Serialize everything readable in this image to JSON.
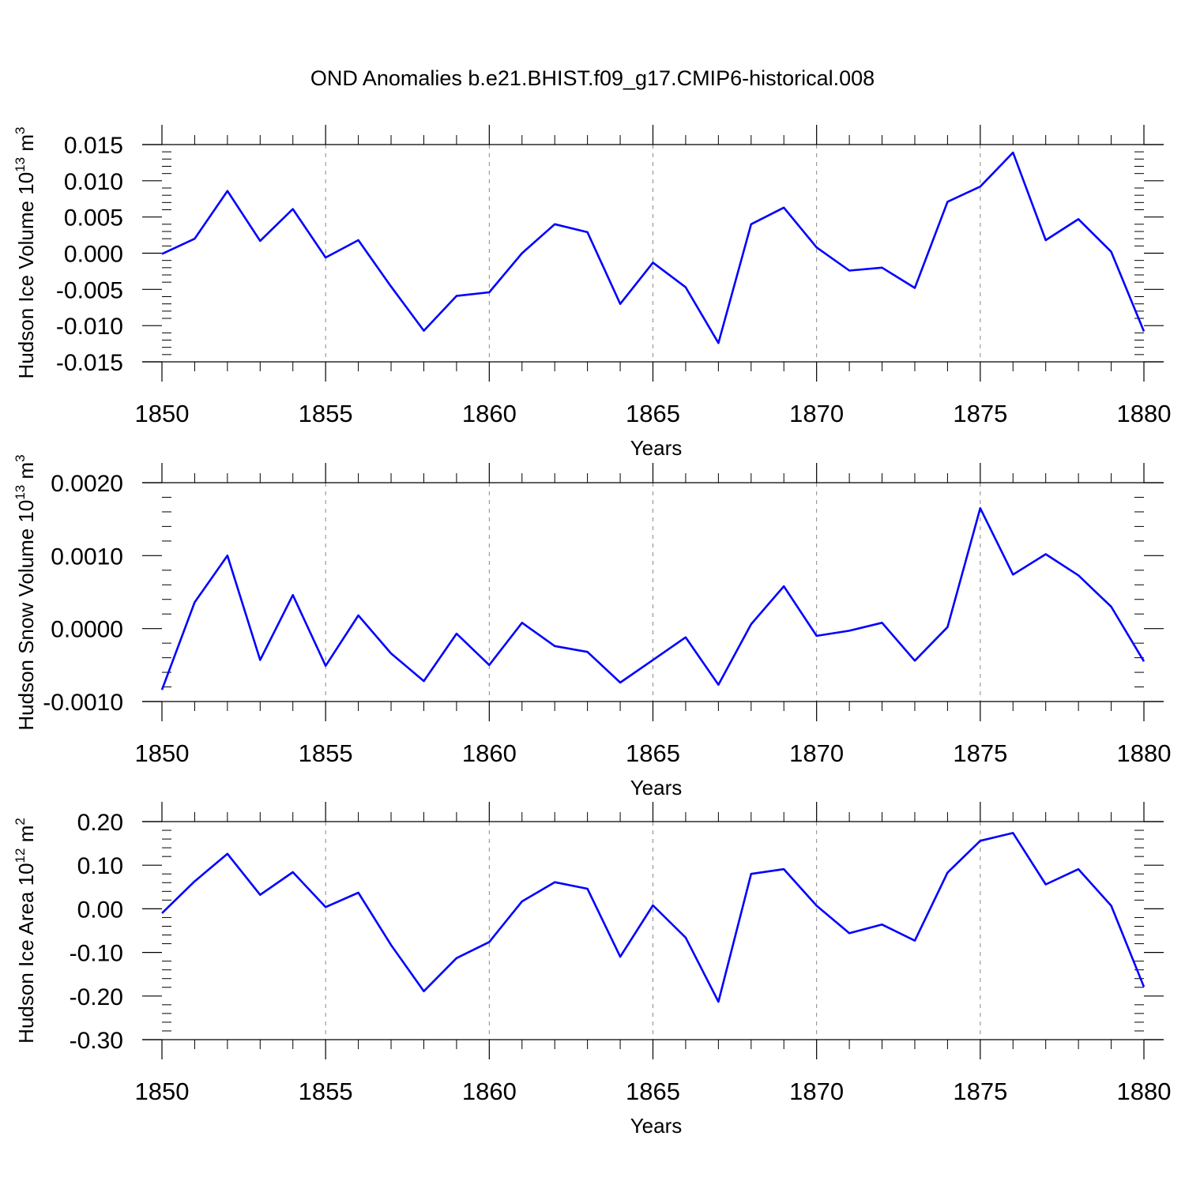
{
  "title": "OND Anomalies b.e21.BHIST.f09_g17.CMIP6-historical.008",
  "colors": {
    "line": "#0000ff",
    "axis": "#000000",
    "grid": "#888888"
  },
  "chart_data": [
    {
      "type": "line",
      "title": "",
      "xlabel": "Years",
      "ylabel": "Hudson Ice Volume 10",
      "ylabel_sup": "13",
      "ylabel_unit": "m",
      "ylabel_unit_sup": "3",
      "xlim": [
        1850,
        1880
      ],
      "ylim": [
        -0.015,
        0.015
      ],
      "xticks": [
        1850,
        1855,
        1860,
        1865,
        1870,
        1875,
        1880
      ],
      "yticks": [
        -0.015,
        -0.01,
        -0.005,
        0.0,
        0.005,
        0.01,
        0.015
      ],
      "yticklabels": [
        "-0.015",
        "-0.010",
        "-0.005",
        "0.000",
        "0.005",
        "0.010",
        "0.015"
      ],
      "grid": "vertical dashed at major x ticks",
      "x": [
        1850,
        1851,
        1852,
        1853,
        1854,
        1855,
        1856,
        1857,
        1858,
        1859,
        1860,
        1861,
        1862,
        1863,
        1864,
        1865,
        1866,
        1867,
        1868,
        1869,
        1870,
        1871,
        1872,
        1873,
        1874,
        1875,
        1876,
        1877,
        1878,
        1879,
        1880
      ],
      "series": [
        {
          "values": [
            -0.0001,
            0.002,
            0.0086,
            0.0017,
            0.0061,
            -0.0006,
            0.0018,
            -0.0046,
            -0.0107,
            -0.0059,
            -0.0054,
            0.0,
            0.004,
            0.0029,
            -0.007,
            -0.0013,
            -0.0047,
            -0.0124,
            0.004,
            0.0063,
            0.0008,
            -0.0024,
            -0.002,
            -0.0048,
            0.0071,
            0.0092,
            0.0139,
            0.0018,
            0.0047,
            0.0002,
            -0.0108
          ]
        }
      ]
    },
    {
      "type": "line",
      "title": "",
      "xlabel": "Years",
      "ylabel": "Hudson Snow Volume 10",
      "ylabel_sup": "13",
      "ylabel_unit": "m",
      "ylabel_unit_sup": "3",
      "xlim": [
        1850,
        1880
      ],
      "ylim": [
        -0.001,
        0.002
      ],
      "xticks": [
        1850,
        1855,
        1860,
        1865,
        1870,
        1875,
        1880
      ],
      "yticks": [
        -0.001,
        0.0,
        0.001,
        0.002
      ],
      "yticklabels": [
        "-0.0010",
        "0.0000",
        "0.0010",
        "0.0020"
      ],
      "grid": "vertical dashed at major x ticks",
      "x": [
        1850,
        1851,
        1852,
        1853,
        1854,
        1855,
        1856,
        1857,
        1858,
        1859,
        1860,
        1861,
        1862,
        1863,
        1864,
        1865,
        1866,
        1867,
        1868,
        1869,
        1870,
        1871,
        1872,
        1873,
        1874,
        1875,
        1876,
        1877,
        1878,
        1879,
        1880
      ],
      "series": [
        {
          "values": [
            -0.00084,
            0.00036,
            0.001,
            -0.00043,
            0.00046,
            -0.00051,
            0.00018,
            -0.00034,
            -0.00072,
            -7e-05,
            -0.0005,
            8e-05,
            -0.00024,
            -0.00032,
            -0.00074,
            -0.00043,
            -0.00012,
            -0.00077,
            6e-05,
            0.00058,
            -0.0001,
            -3e-05,
            8e-05,
            -0.00044,
            2e-05,
            0.00165,
            0.00074,
            0.00102,
            0.00073,
            0.0003,
            -0.00045
          ]
        }
      ]
    },
    {
      "type": "line",
      "title": "",
      "xlabel": "Years",
      "ylabel": "Hudson Ice Area 10",
      "ylabel_sup": "12",
      "ylabel_unit": "m",
      "ylabel_unit_sup": "2",
      "xlim": [
        1850,
        1880
      ],
      "ylim": [
        -0.3,
        0.2
      ],
      "xticks": [
        1850,
        1855,
        1860,
        1865,
        1870,
        1875,
        1880
      ],
      "yticks": [
        -0.3,
        -0.2,
        -0.1,
        0.0,
        0.1,
        0.2
      ],
      "yticklabels": [
        "-0.30",
        "-0.20",
        "-0.10",
        "0.00",
        "0.10",
        "0.20"
      ],
      "grid": "vertical dashed at major x ticks",
      "x": [
        1850,
        1851,
        1852,
        1853,
        1854,
        1855,
        1856,
        1857,
        1858,
        1859,
        1860,
        1861,
        1862,
        1863,
        1864,
        1865,
        1866,
        1867,
        1868,
        1869,
        1870,
        1871,
        1872,
        1873,
        1874,
        1875,
        1876,
        1877,
        1878,
        1879,
        1880
      ],
      "series": [
        {
          "values": [
            -0.01,
            0.063,
            0.126,
            0.032,
            0.084,
            0.004,
            0.037,
            -0.083,
            -0.189,
            -0.113,
            -0.076,
            0.017,
            0.061,
            0.046,
            -0.11,
            0.008,
            -0.066,
            -0.213,
            0.08,
            0.091,
            0.007,
            -0.056,
            -0.036,
            -0.073,
            0.083,
            0.156,
            0.174,
            0.056,
            0.091,
            0.007,
            -0.179
          ]
        }
      ]
    }
  ]
}
